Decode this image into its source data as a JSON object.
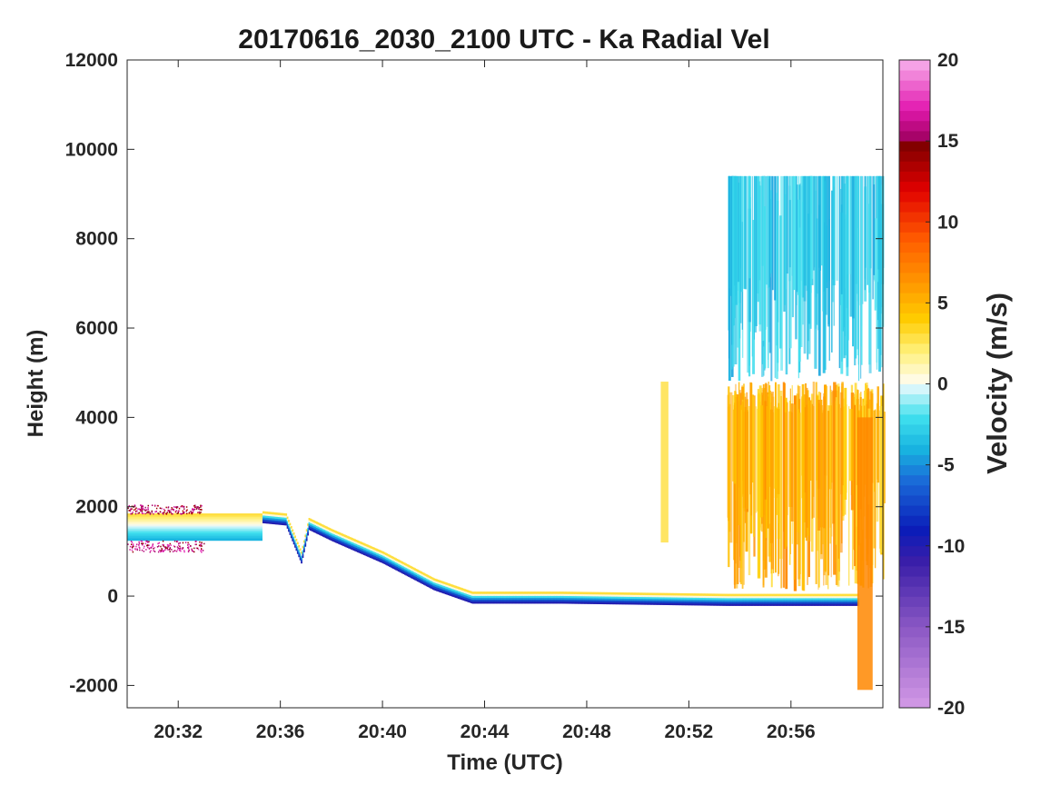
{
  "chart_data": {
    "type": "heatmap",
    "title": "20170616_2030_2100 UTC - Ka Radial Vel",
    "xlabel": "Time (UTC)",
    "ylabel": "Height (m)",
    "colorbar_label": "Velocity (m/s)",
    "x_range_minutes": [
      30,
      59.6
    ],
    "ylim": [
      -2500,
      12000
    ],
    "x_ticks": [
      {
        "minute": 32,
        "label": "20:32"
      },
      {
        "minute": 36,
        "label": "20:36"
      },
      {
        "minute": 40,
        "label": "20:40"
      },
      {
        "minute": 44,
        "label": "20:44"
      },
      {
        "minute": 48,
        "label": "20:48"
      },
      {
        "minute": 52,
        "label": "20:52"
      },
      {
        "minute": 56,
        "label": "20:56"
      }
    ],
    "y_ticks": [
      {
        "value": 12000,
        "label": "12000"
      },
      {
        "value": 10000,
        "label": "10000"
      },
      {
        "value": 8000,
        "label": "8000"
      },
      {
        "value": 6000,
        "label": "6000"
      },
      {
        "value": 4000,
        "label": "4000"
      },
      {
        "value": 2000,
        "label": "2000"
      },
      {
        "value": 0,
        "label": "0"
      },
      {
        "value": -2000,
        "label": "-2000"
      }
    ],
    "colorbar": {
      "range": [
        -20,
        20
      ],
      "ticks": [
        {
          "value": 20,
          "label": "20"
        },
        {
          "value": 15,
          "label": "15"
        },
        {
          "value": 10,
          "label": "10"
        },
        {
          "value": 5,
          "label": "5"
        },
        {
          "value": 0,
          "label": "0"
        },
        {
          "value": -5,
          "label": "-5"
        },
        {
          "value": -10,
          "label": "-10"
        },
        {
          "value": -15,
          "label": "-15"
        },
        {
          "value": -20,
          "label": "-20"
        }
      ],
      "stops": [
        {
          "v": -20,
          "color": "#d49ae6"
        },
        {
          "v": -15,
          "color": "#8a57c4"
        },
        {
          "v": -11,
          "color": "#3a1ea8"
        },
        {
          "v": -9,
          "color": "#0a1cb8"
        },
        {
          "v": -6,
          "color": "#1a6ad8"
        },
        {
          "v": -4,
          "color": "#18b4e0"
        },
        {
          "v": -2,
          "color": "#40e0ee"
        },
        {
          "v": -0.3,
          "color": "#d6f6fb"
        },
        {
          "v": 0.3,
          "color": "#fffbe4"
        },
        {
          "v": 2,
          "color": "#fff07a"
        },
        {
          "v": 4,
          "color": "#ffcc00"
        },
        {
          "v": 6,
          "color": "#ff9d00"
        },
        {
          "v": 9,
          "color": "#ff5a00"
        },
        {
          "v": 12,
          "color": "#e10000"
        },
        {
          "v": 14.9,
          "color": "#7a0000"
        },
        {
          "v": 15.1,
          "color": "#a00060"
        },
        {
          "v": 17,
          "color": "#e31ab0"
        },
        {
          "v": 20,
          "color": "#f7b2ec"
        }
      ]
    },
    "observations": [
      {
        "feature": "stationary layer",
        "t_start": 30,
        "t_end": 35.3,
        "h_bottom": 1250,
        "h_top": 1850,
        "v_bottom": -4,
        "v_top": 3
      },
      {
        "feature": "noise speckle above layer",
        "t_start": 30,
        "t_end": 32.9,
        "h_bottom": 1850,
        "h_top": 2050,
        "v": 15
      },
      {
        "feature": "noise speckle below layer",
        "t_start": 30,
        "t_end": 33,
        "h_bottom": 1000,
        "h_top": 1250,
        "v": 16
      },
      {
        "feature": "descending layer",
        "layer_top": [
          [
            35.3,
            1900
          ],
          [
            36.2,
            1850
          ],
          [
            36.8,
            1000
          ],
          [
            37.1,
            1750
          ],
          [
            38,
            1500
          ],
          [
            40,
            1000
          ],
          [
            42,
            400
          ],
          [
            43.5,
            100
          ],
          [
            47,
            100
          ],
          [
            53.5,
            50
          ],
          [
            58.6,
            50
          ]
        ],
        "v_bottom": -10,
        "v_top": 3
      },
      {
        "feature": "isolated streak",
        "t_start": 50.9,
        "t_end": 51.2,
        "h_bottom": 1200,
        "h_top": 4800,
        "v": 3
      },
      {
        "feature": "precipitation",
        "t_start": 53.5,
        "t_end": 59.6,
        "h_bottom": 100,
        "h_top": 4800,
        "v": 5
      },
      {
        "feature": "upper cloud",
        "t_start": 53.5,
        "t_end": 59.6,
        "h_bottom": 4800,
        "h_top": 9400,
        "v": -3
      },
      {
        "feature": "deep fall streak",
        "t_start": 58.6,
        "t_end": 59.2,
        "h_bottom": -2100,
        "h_top": 4000,
        "v": 7
      }
    ]
  }
}
